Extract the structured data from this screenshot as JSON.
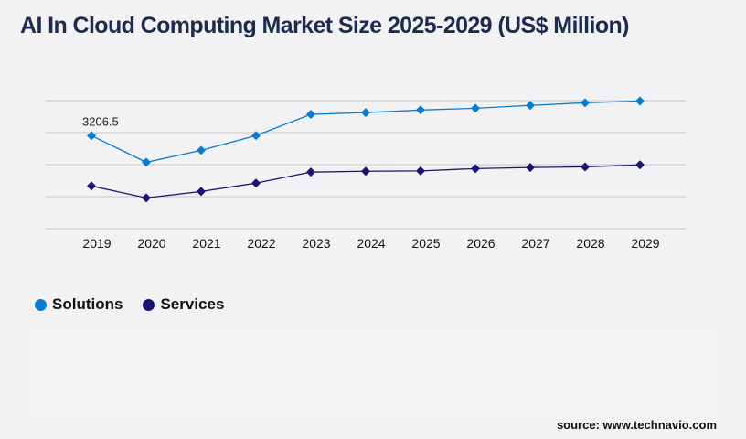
{
  "title": "AI In Cloud Computing Market Size 2025-2029 (US$ Million)",
  "source": "source: www.technavio.com",
  "chart_data": {
    "type": "line",
    "title": "AI In Cloud Computing Market Size 2025-2029 (US$ Million)",
    "x": [
      "2019",
      "2020",
      "2021",
      "2022",
      "2023",
      "2024",
      "2025",
      "2026",
      "2027",
      "2028",
      "2029"
    ],
    "series": [
      {
        "name": "Solutions",
        "color": "#0a7bd0",
        "values": [
          3206.5,
          2290,
          2700,
          3210,
          3940,
          4000,
          4090,
          4150,
          4250,
          4340,
          4400
        ]
      },
      {
        "name": "Services",
        "color": "#1a1572",
        "values": [
          1470,
          1060,
          1280,
          1570,
          1950,
          1980,
          1990,
          2070,
          2110,
          2130,
          2200
        ]
      }
    ],
    "data_labels": [
      {
        "series": "Solutions",
        "x": "2019",
        "text": "3206.5"
      }
    ],
    "ylim": [
      0,
      4415
    ],
    "grid": true,
    "y_tick_labels_shown": false,
    "legend": "bottom-left",
    "xlabel": "",
    "ylabel": ""
  }
}
